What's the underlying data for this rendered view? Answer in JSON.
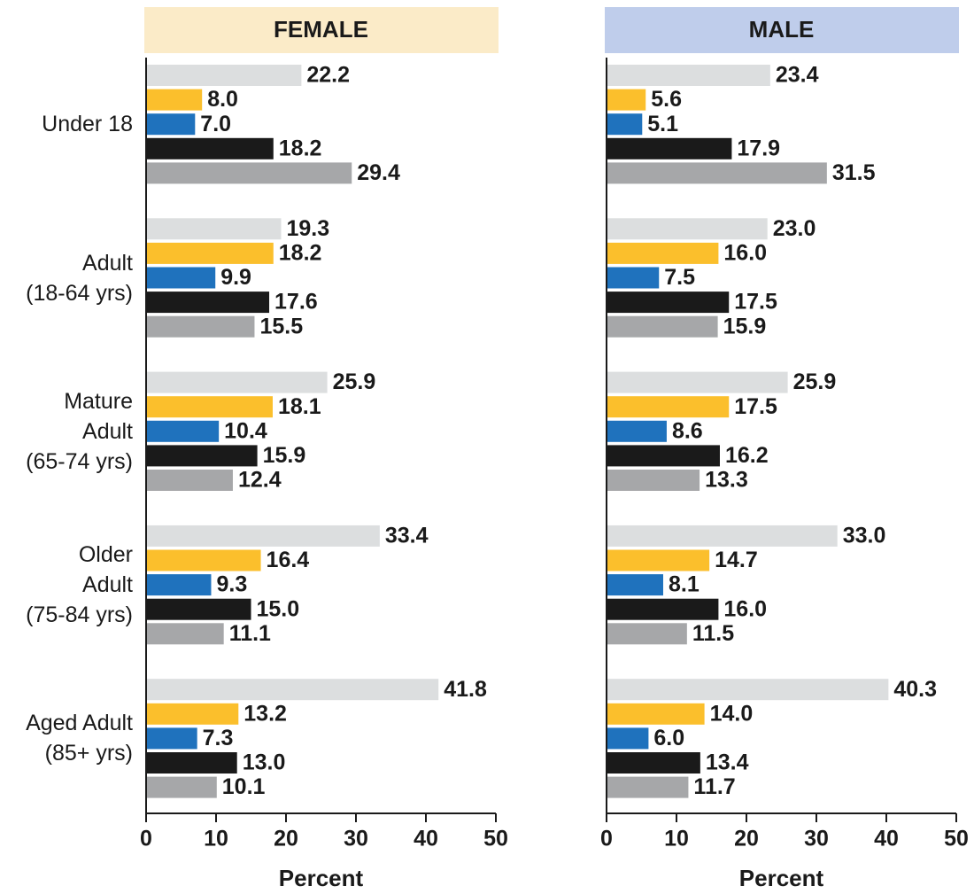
{
  "chart_data": [
    {
      "type": "bar",
      "orientation": "horizontal",
      "title": "FEMALE",
      "title_color": "#fbebc8",
      "categories": [
        "Under 18",
        "Adult\n(18-64 yrs)",
        "Mature\nAdult\n(65-74 yrs)",
        "Older\nAdult\n(75-84 yrs)",
        "Aged Adult\n(85+ yrs)"
      ],
      "series": [
        {
          "color": "#dcdedf",
          "values": [
            22.2,
            19.3,
            25.9,
            33.4,
            41.8
          ],
          "value_labels": [
            "22.2",
            "19.3",
            "25.9",
            "33.4",
            "41.8"
          ]
        },
        {
          "color": "#fbbf2c",
          "values": [
            8.0,
            18.2,
            18.1,
            16.4,
            13.2
          ],
          "value_labels": [
            "8.0",
            "18.2",
            "18.1",
            "16.4",
            "13.2"
          ]
        },
        {
          "color": "#1f72bd",
          "values": [
            7.0,
            9.9,
            10.4,
            9.3,
            7.3
          ],
          "value_labels": [
            "7.0",
            "9.9",
            "10.4",
            "9.3",
            "7.3"
          ]
        },
        {
          "color": "#1a1a1a",
          "values": [
            18.2,
            17.6,
            15.9,
            15.0,
            13.0
          ],
          "value_labels": [
            "18.2",
            "17.6",
            "15.9",
            "15.0",
            "13.0"
          ]
        },
        {
          "color": "#a6a7a9",
          "values": [
            29.4,
            15.5,
            12.4,
            11.1,
            10.1
          ],
          "value_labels": [
            "29.4",
            "15.5",
            "12.4",
            "11.1",
            "10.1"
          ]
        }
      ],
      "xlabel": "Percent",
      "xlim": [
        0,
        50
      ],
      "xticks": [
        0,
        10,
        20,
        30,
        40,
        50
      ]
    },
    {
      "type": "bar",
      "orientation": "horizontal",
      "title": "MALE",
      "title_color": "#bfcdeb",
      "categories": [
        null,
        null,
        null,
        null,
        null
      ],
      "series": [
        {
          "color": "#dcdedf",
          "values": [
            23.4,
            23.0,
            25.9,
            33.0,
            40.3
          ],
          "value_labels": [
            "23.4",
            "23.0",
            "25.9",
            "33.0",
            "40.3"
          ]
        },
        {
          "color": "#fbbf2c",
          "values": [
            5.6,
            16.0,
            17.5,
            14.7,
            14.0
          ],
          "value_labels": [
            "5.6",
            "16.0",
            "17.5",
            "14.7",
            "14.0"
          ]
        },
        {
          "color": "#1f72bd",
          "values": [
            5.1,
            7.5,
            8.6,
            8.1,
            6.0
          ],
          "value_labels": [
            "5.1",
            "7.5",
            "8.6",
            "8.1",
            "6.0"
          ]
        },
        {
          "color": "#1a1a1a",
          "values": [
            17.9,
            17.5,
            16.2,
            16.0,
            13.4
          ],
          "value_labels": [
            "17.9",
            "17.5",
            "16.2",
            "16.0",
            "13.4"
          ]
        },
        {
          "color": "#a6a7a9",
          "values": [
            31.5,
            15.9,
            13.3,
            11.5,
            11.7
          ],
          "value_labels": [
            "31.5",
            "15.9",
            "13.3",
            "11.5",
            "11.7"
          ]
        }
      ],
      "xlabel": "Percent",
      "xlim": [
        0,
        50
      ],
      "xticks": [
        0,
        10,
        20,
        30,
        40,
        50
      ]
    }
  ]
}
